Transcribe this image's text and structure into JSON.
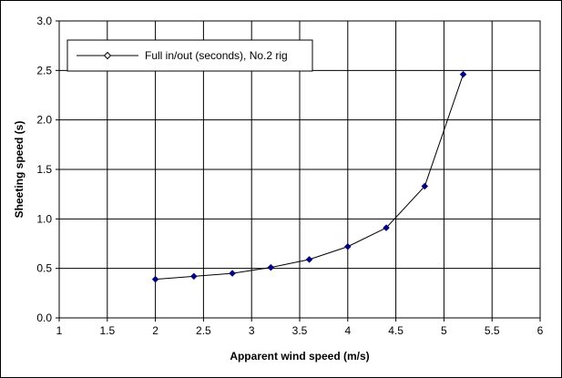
{
  "chart_data": {
    "type": "line",
    "title": "",
    "xlabel": "Apparent wind speed (m/s)",
    "ylabel": "Sheeting speed (s)",
    "xlim": [
      1,
      6
    ],
    "ylim": [
      0,
      3.0
    ],
    "x_ticks": [
      "1",
      "1.5",
      "2",
      "2.5",
      "3",
      "3.5",
      "4",
      "4.5",
      "5",
      "5.5",
      "6"
    ],
    "y_ticks": [
      "0.0",
      "0.5",
      "1.0",
      "1.5",
      "2.0",
      "2.5",
      "3.0"
    ],
    "x_tick_values": [
      1,
      1.5,
      2,
      2.5,
      3,
      3.5,
      4,
      4.5,
      5,
      5.5,
      6
    ],
    "y_tick_values": [
      0,
      0.5,
      1.0,
      1.5,
      2.0,
      2.5,
      3.0
    ],
    "grid": true,
    "legend_position": "top-left",
    "series": [
      {
        "name": "Full in/out (seconds), No.2 rig",
        "color": "#000080",
        "line_color": "#000000",
        "marker": "diamond",
        "x": [
          2.0,
          2.4,
          2.8,
          3.2,
          3.6,
          4.0,
          4.4,
          4.8,
          5.2
        ],
        "y": [
          0.39,
          0.42,
          0.45,
          0.51,
          0.59,
          0.72,
          0.91,
          1.33,
          2.46
        ]
      }
    ]
  }
}
